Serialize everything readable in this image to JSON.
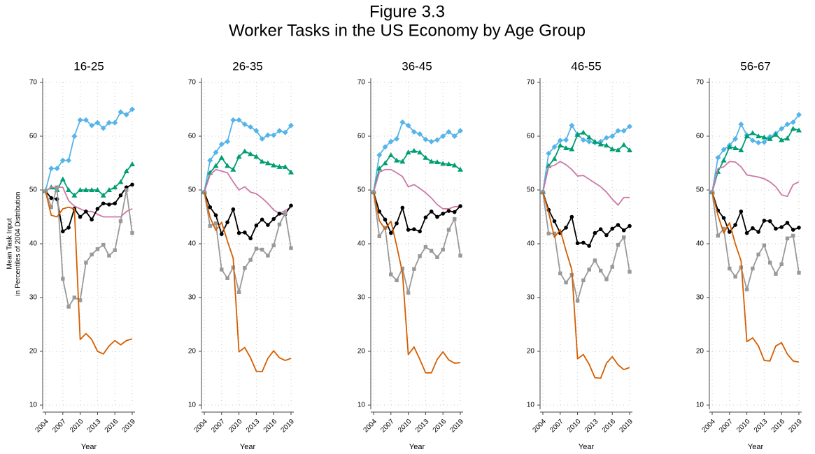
{
  "title": "Figure 3.3",
  "subtitle": "Worker Tasks in the US Economy by Age Group",
  "chart_data": [
    {
      "type": "line",
      "title": "16-25",
      "xlabel": "Year",
      "ylabel": [
        "Mean Task Input",
        "in Percentiles of 2004 Distribution"
      ],
      "x": [
        2004,
        2005,
        2006,
        2007,
        2008,
        2009,
        2010,
        2011,
        2012,
        2013,
        2014,
        2015,
        2016,
        2017,
        2018,
        2019
      ],
      "xlim": [
        2004,
        2019
      ],
      "xticks": [
        2004,
        2007,
        2010,
        2013,
        2016,
        2019
      ],
      "ylim": [
        10,
        70
      ],
      "yticks": [
        10,
        20,
        30,
        40,
        50,
        60,
        70
      ],
      "grid": true,
      "series": [
        {
          "color": "#56b4e9",
          "marker": "diamond",
          "values": [
            49.8,
            54,
            54,
            55.5,
            55.5,
            60,
            63,
            63,
            62,
            62.5,
            61.5,
            62.5,
            62.5,
            64.5,
            64,
            65
          ]
        },
        {
          "color": "#009e73",
          "marker": "triangle",
          "values": [
            49.8,
            50.5,
            50,
            52,
            50,
            49,
            50,
            50,
            50,
            50,
            49,
            50,
            50.5,
            51.5,
            53.5,
            54.8
          ]
        },
        {
          "color": "#cc79a7",
          "marker": "none",
          "values": [
            49.8,
            50.5,
            50.5,
            50.5,
            48,
            47,
            46.5,
            46,
            46,
            45.5,
            45,
            45,
            45,
            45,
            46,
            46.5
          ]
        },
        {
          "color": "#000000",
          "marker": "circle",
          "values": [
            49.8,
            48.5,
            48.3,
            42.3,
            43,
            46.5,
            45,
            46,
            44.5,
            46.5,
            47.5,
            47.3,
            47.5,
            49,
            50.5,
            51
          ]
        },
        {
          "color": "#999999",
          "marker": "square",
          "values": [
            49.8,
            46.8,
            50.5,
            33.5,
            28.3,
            30,
            29.5,
            36.5,
            38,
            39,
            39.8,
            37.8,
            38.8,
            44.2,
            50,
            42
          ]
        },
        {
          "color": "#d55e00",
          "marker": "none",
          "values": [
            49.8,
            45.3,
            45,
            46.5,
            46.8,
            46.5,
            22.2,
            23.3,
            22.2,
            20,
            19.5,
            21,
            22,
            21.2,
            22,
            22.3
          ]
        }
      ]
    },
    {
      "type": "line",
      "title": "26-35",
      "xlabel": "Year",
      "x": [
        2004,
        2005,
        2006,
        2007,
        2008,
        2009,
        2010,
        2011,
        2012,
        2013,
        2014,
        2015,
        2016,
        2017,
        2018,
        2019
      ],
      "xlim": [
        2004,
        2019
      ],
      "xticks": [
        2004,
        2007,
        2010,
        2013,
        2016,
        2019
      ],
      "ylim": [
        10,
        70
      ],
      "yticks": [
        10,
        20,
        30,
        40,
        50,
        60,
        70
      ],
      "grid": true,
      "series": [
        {
          "color": "#56b4e9",
          "marker": "diamond",
          "values": [
            49.6,
            55.5,
            57,
            58.5,
            59,
            63,
            63,
            62.2,
            61.7,
            61,
            59.5,
            60.2,
            60.2,
            61,
            60.7,
            62
          ]
        },
        {
          "color": "#009e73",
          "marker": "triangle",
          "values": [
            49.6,
            53.2,
            54.5,
            56,
            54.5,
            53.8,
            56.2,
            57.2,
            56.7,
            56.2,
            55.3,
            55,
            54.6,
            54.3,
            54.3,
            53.3
          ]
        },
        {
          "color": "#cc79a7",
          "marker": "none",
          "values": [
            49.6,
            52.8,
            53.8,
            53.5,
            53.2,
            51.5,
            50,
            50.6,
            49.6,
            49.3,
            48.5,
            47.5,
            46.3,
            45.6,
            46.2,
            46.8
          ]
        },
        {
          "color": "#000000",
          "marker": "circle",
          "values": [
            49.6,
            46.8,
            45.3,
            41.8,
            44,
            46.4,
            42,
            42.1,
            41,
            43.4,
            44.5,
            43.5,
            44.6,
            45.6,
            45.5,
            47.1
          ]
        },
        {
          "color": "#999999",
          "marker": "square",
          "values": [
            49.6,
            43.3,
            43.8,
            35.2,
            33.6,
            35.6,
            31,
            35.5,
            37,
            39.1,
            38.9,
            37.8,
            39.7,
            43.6,
            45.7,
            39.2
          ]
        },
        {
          "color": "#d55e00",
          "marker": "none",
          "values": [
            49.6,
            44.9,
            42.5,
            44,
            40.5,
            37.3,
            19.9,
            20.7,
            18.8,
            16.3,
            16.2,
            18.7,
            20.1,
            18.8,
            18.3,
            18.7
          ]
        }
      ]
    },
    {
      "type": "line",
      "title": "36-45",
      "xlabel": "Year",
      "x": [
        2004,
        2005,
        2006,
        2007,
        2008,
        2009,
        2010,
        2011,
        2012,
        2013,
        2014,
        2015,
        2016,
        2017,
        2018,
        2019
      ],
      "xlim": [
        2004,
        2019
      ],
      "xticks": [
        2004,
        2007,
        2010,
        2013,
        2016,
        2019
      ],
      "ylim": [
        10,
        70
      ],
      "yticks": [
        10,
        20,
        30,
        40,
        50,
        60,
        70
      ],
      "grid": true,
      "series": [
        {
          "color": "#56b4e9",
          "marker": "diamond",
          "values": [
            49.6,
            56.5,
            58,
            59,
            59.5,
            62.6,
            62,
            60.8,
            60.4,
            59.4,
            59,
            59.3,
            60,
            60.8,
            60,
            61
          ]
        },
        {
          "color": "#009e73",
          "marker": "triangle",
          "values": [
            49.6,
            54,
            55,
            56.5,
            55.5,
            55.3,
            57,
            57.3,
            57,
            56,
            55.3,
            55.2,
            54.9,
            54.8,
            54.6,
            53.8
          ]
        },
        {
          "color": "#cc79a7",
          "marker": "none",
          "values": [
            49.6,
            53.3,
            53.8,
            53.8,
            53.2,
            52.5,
            50.6,
            51,
            50.3,
            49.5,
            48.5,
            47.3,
            46.5,
            46.5,
            46.9,
            46.9
          ]
        },
        {
          "color": "#000000",
          "marker": "circle",
          "values": [
            49.6,
            46,
            44.5,
            42,
            43.8,
            46.7,
            42.6,
            42.7,
            42.3,
            44.9,
            46,
            45,
            45.6,
            46.1,
            45.9,
            47
          ]
        },
        {
          "color": "#999999",
          "marker": "square",
          "values": [
            49.6,
            41.4,
            43,
            34.3,
            33.2,
            35.4,
            30.9,
            35.3,
            37.7,
            39.4,
            38.7,
            37.5,
            38.9,
            42.6,
            44.6,
            37.8
          ]
        },
        {
          "color": "#d55e00",
          "marker": "none",
          "values": [
            49.6,
            44.3,
            42.7,
            44.2,
            39.6,
            34.6,
            19.4,
            20.8,
            18.5,
            16,
            16,
            18.5,
            19.9,
            18.4,
            17.8,
            17.9
          ]
        }
      ]
    },
    {
      "type": "line",
      "title": "46-55",
      "xlabel": "Year",
      "x": [
        2004,
        2005,
        2006,
        2007,
        2008,
        2009,
        2010,
        2011,
        2012,
        2013,
        2014,
        2015,
        2016,
        2017,
        2018,
        2019
      ],
      "xlim": [
        2004,
        2019
      ],
      "xticks": [
        2004,
        2007,
        2010,
        2013,
        2016,
        2019
      ],
      "ylim": [
        10,
        70
      ],
      "yticks": [
        10,
        20,
        30,
        40,
        50,
        60,
        70
      ],
      "grid": true,
      "series": [
        {
          "color": "#56b4e9",
          "marker": "diamond",
          "values": [
            49.6,
            56.8,
            58,
            59.2,
            59.3,
            62,
            60.3,
            59.3,
            59,
            58.8,
            59,
            59.7,
            60,
            61,
            61,
            61.8
          ]
        },
        {
          "color": "#009e73",
          "marker": "triangle",
          "values": [
            49.6,
            54.5,
            55.8,
            58.3,
            57.8,
            57.6,
            60.3,
            60.7,
            59.8,
            59,
            58.5,
            58.3,
            57.6,
            57.4,
            58.4,
            57.4
          ]
        },
        {
          "color": "#cc79a7",
          "marker": "none",
          "values": [
            49.6,
            54.3,
            54.6,
            55.3,
            54.7,
            53.8,
            52.6,
            52.7,
            52,
            51.3,
            50.6,
            49.6,
            48.3,
            47.2,
            48.6,
            48.6
          ]
        },
        {
          "color": "#000000",
          "marker": "circle",
          "values": [
            49.6,
            46.3,
            44.2,
            42,
            43,
            45,
            40.1,
            40.2,
            39.6,
            42,
            42.7,
            41.6,
            42.8,
            43.5,
            42.5,
            43.3
          ]
        },
        {
          "color": "#999999",
          "marker": "square",
          "values": [
            49.6,
            41.9,
            41.9,
            34.5,
            32.8,
            34.2,
            29.4,
            33.2,
            35.2,
            36.9,
            35,
            33.4,
            35.7,
            39.8,
            41.2,
            34.8
          ]
        },
        {
          "color": "#d55e00",
          "marker": "none",
          "values": [
            49.6,
            45.8,
            41.2,
            42.6,
            38.7,
            35.2,
            18.6,
            19.4,
            17.6,
            15.1,
            15,
            17.8,
            19,
            17.5,
            16.6,
            17
          ]
        }
      ]
    },
    {
      "type": "line",
      "title": "56-67",
      "xlabel": "Year",
      "x": [
        2004,
        2005,
        2006,
        2007,
        2008,
        2009,
        2010,
        2011,
        2012,
        2013,
        2014,
        2015,
        2016,
        2017,
        2018,
        2019
      ],
      "xlim": [
        2004,
        2019
      ],
      "xticks": [
        2004,
        2007,
        2010,
        2013,
        2016,
        2019
      ],
      "ylim": [
        10,
        70
      ],
      "yticks": [
        10,
        20,
        30,
        40,
        50,
        60,
        70
      ],
      "grid": true,
      "series": [
        {
          "color": "#56b4e9",
          "marker": "diamond",
          "values": [
            49.6,
            56,
            57.5,
            58.3,
            59.5,
            62.2,
            60.2,
            59.2,
            58.8,
            58.9,
            59.9,
            60.5,
            61.4,
            62.2,
            62.6,
            64
          ]
        },
        {
          "color": "#009e73",
          "marker": "triangle",
          "values": [
            49.6,
            53.4,
            55.5,
            58,
            57.8,
            57.4,
            60,
            60.6,
            60,
            59.8,
            59.5,
            60.3,
            59.3,
            59.6,
            61.4,
            61.1
          ]
        },
        {
          "color": "#cc79a7",
          "marker": "none",
          "values": [
            49.6,
            54,
            54.3,
            55.3,
            55.2,
            54.3,
            52.8,
            52.6,
            52.4,
            52.1,
            51.5,
            50.6,
            49.1,
            48.8,
            51,
            51.5
          ]
        },
        {
          "color": "#000000",
          "marker": "circle",
          "values": [
            49.6,
            46.2,
            44.8,
            42.2,
            43.5,
            46,
            42,
            42.9,
            42.2,
            44.3,
            44.2,
            42.8,
            43.1,
            43.9,
            42.6,
            43
          ]
        },
        {
          "color": "#999999",
          "marker": "square",
          "values": [
            49.6,
            41.5,
            42.8,
            35.4,
            33.9,
            35.6,
            31.5,
            35.4,
            38,
            39.7,
            36.5,
            34.4,
            36.2,
            41,
            41.5,
            34.6
          ]
        },
        {
          "color": "#d55e00",
          "marker": "none",
          "values": [
            49.6,
            45.3,
            42,
            43.9,
            40,
            36.8,
            21.8,
            22.5,
            21,
            18.3,
            18.2,
            21,
            21.6,
            19.5,
            18.2,
            18
          ]
        }
      ]
    }
  ]
}
